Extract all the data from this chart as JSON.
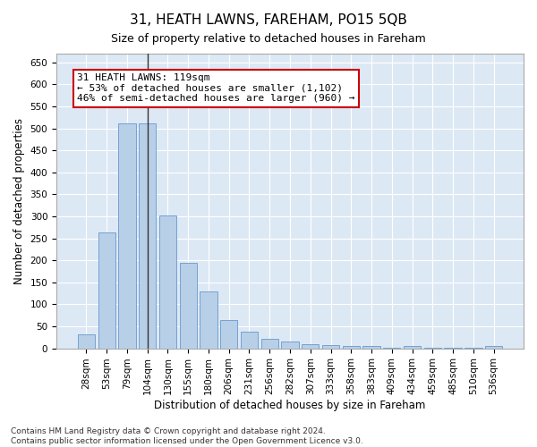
{
  "title": "31, HEATH LAWNS, FAREHAM, PO15 5QB",
  "subtitle": "Size of property relative to detached houses in Fareham",
  "xlabel": "Distribution of detached houses by size in Fareham",
  "ylabel": "Number of detached properties",
  "footnote": "Contains HM Land Registry data © Crown copyright and database right 2024.\nContains public sector information licensed under the Open Government Licence v3.0.",
  "categories": [
    "28sqm",
    "53sqm",
    "79sqm",
    "104sqm",
    "130sqm",
    "155sqm",
    "180sqm",
    "206sqm",
    "231sqm",
    "256sqm",
    "282sqm",
    "307sqm",
    "333sqm",
    "358sqm",
    "383sqm",
    "409sqm",
    "434sqm",
    "459sqm",
    "485sqm",
    "510sqm",
    "536sqm"
  ],
  "values": [
    31,
    263,
    511,
    511,
    303,
    194,
    130,
    64,
    38,
    22,
    16,
    10,
    7,
    5,
    5,
    1,
    5,
    1,
    1,
    1,
    5
  ],
  "bar_color": "#b8cfe8",
  "bar_edge_color": "#6699cc",
  "highlight_index": 3,
  "ylim": [
    0,
    670
  ],
  "yticks": [
    0,
    50,
    100,
    150,
    200,
    250,
    300,
    350,
    400,
    450,
    500,
    550,
    600,
    650
  ],
  "annotation_text": "31 HEATH LAWNS: 119sqm\n← 53% of detached houses are smaller (1,102)\n46% of semi-detached houses are larger (960) →",
  "annotation_box_facecolor": "#ffffff",
  "annotation_box_edgecolor": "#cc0000",
  "marker_line_color": "#333333",
  "bg_color": "#dde8f5",
  "fig_bg_color": "#ffffff",
  "grid_color": "#ffffff",
  "title_fontsize": 11,
  "subtitle_fontsize": 9,
  "axis_label_fontsize": 8.5,
  "tick_fontsize": 7.5,
  "annotation_fontsize": 8,
  "footnote_fontsize": 6.5
}
